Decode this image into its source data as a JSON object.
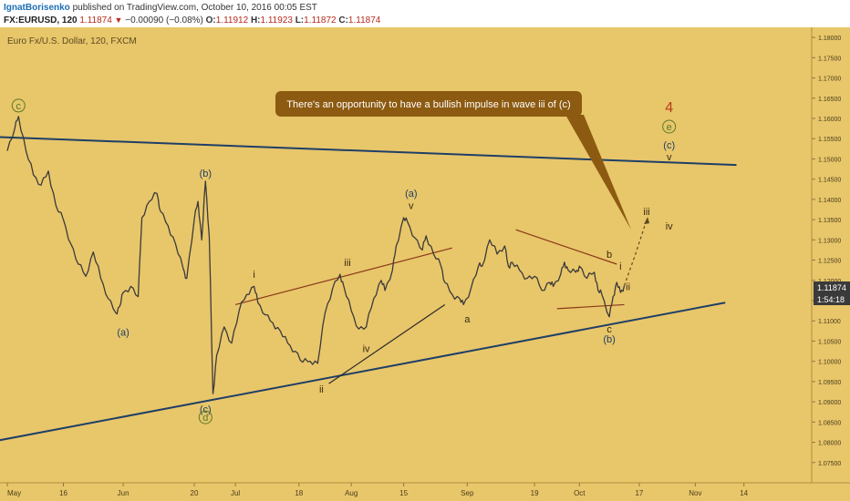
{
  "header": {
    "author": "IgnatBorisenko",
    "published": "published on TradingView.com, October 10, 2016 00:05 EST",
    "symbol": "FX:EURUSD, 120",
    "last": "1.11874",
    "change": "−0.00090 (−0.08%)",
    "o_label": "O:",
    "o": "1.11912",
    "h_label": "H:",
    "h": "1.11923",
    "l_label": "L:",
    "l": "1.11872",
    "c_label": "C:",
    "c": "1.11874"
  },
  "chart_title": "Euro Fx/U.S. Dollar, 120, FXCM",
  "callout": "There's an opportunity to have a bullish impulse in wave iii of (c)",
  "price_badges": {
    "last": "1.11874",
    "countdown": "1:54:18"
  },
  "colors": {
    "background": "#e8c66a",
    "candle": "#3a3a3a",
    "trendline": "#1f3f66",
    "minor_line": "#8a3a1a",
    "callout_bg": "#8c5a10",
    "red_label": "#b83a16",
    "green_label": "#5a7a2a"
  },
  "chart_data": {
    "type": "line",
    "ylim": [
      1.07,
      1.1825
    ],
    "y_ticks": [
      "1.18000",
      "1.17500",
      "1.17000",
      "1.16500",
      "1.16000",
      "1.15500",
      "1.15000",
      "1.14500",
      "1.14000",
      "1.13500",
      "1.13000",
      "1.12500",
      "1.12000",
      "1.11500",
      "1.11000",
      "1.10500",
      "1.10000",
      "1.09500",
      "1.09000",
      "1.08500",
      "1.08000",
      "1.07500"
    ],
    "x_ticks": [
      "May",
      "16",
      "Jun",
      "20",
      "Jul",
      "18",
      "Aug",
      "15",
      "Sep",
      "19",
      "Oct",
      "17",
      "Nov",
      "14"
    ],
    "x_tick_days": [
      0,
      15,
      31,
      50,
      61,
      78,
      92,
      106,
      123,
      141,
      153,
      169,
      184,
      197
    ],
    "price_path": [
      [
        0,
        1.152
      ],
      [
        2,
        1.1575
      ],
      [
        3,
        1.1605
      ],
      [
        5,
        1.152
      ],
      [
        7,
        1.146
      ],
      [
        9,
        1.1435
      ],
      [
        11,
        1.147
      ],
      [
        13,
        1.1385
      ],
      [
        15,
        1.135
      ],
      [
        17,
        1.129
      ],
      [
        19,
        1.124
      ],
      [
        21,
        1.121
      ],
      [
        23,
        1.127
      ],
      [
        25,
        1.1205
      ],
      [
        27,
        1.1155
      ],
      [
        29,
        1.112
      ],
      [
        30,
        1.1135
      ],
      [
        31,
        1.117
      ],
      [
        33,
        1.1185
      ],
      [
        35,
        1.116
      ],
      [
        36,
        1.1355
      ],
      [
        38,
        1.1395
      ],
      [
        40,
        1.1415
      ],
      [
        41,
        1.137
      ],
      [
        43,
        1.1335
      ],
      [
        45,
        1.129
      ],
      [
        47,
        1.123
      ],
      [
        48,
        1.1205
      ],
      [
        50,
        1.135
      ],
      [
        51,
        1.1395
      ],
      [
        52,
        1.13
      ],
      [
        53,
        1.1445
      ],
      [
        54,
        1.131
      ],
      [
        55,
        1.092
      ],
      [
        56,
        1.1015
      ],
      [
        58,
        1.1085
      ],
      [
        60,
        1.1045
      ],
      [
        62,
        1.1125
      ],
      [
        64,
        1.1165
      ],
      [
        66,
        1.1185
      ],
      [
        67,
        1.1145
      ],
      [
        69,
        1.1115
      ],
      [
        71,
        1.1095
      ],
      [
        73,
        1.1075
      ],
      [
        75,
        1.1045
      ],
      [
        77,
        1.1025
      ],
      [
        79,
        1.0998
      ],
      [
        81,
        1.1
      ],
      [
        83,
        1.0995
      ],
      [
        85,
        1.112
      ],
      [
        87,
        1.118
      ],
      [
        89,
        1.1215
      ],
      [
        90,
        1.1185
      ],
      [
        92,
        1.1125
      ],
      [
        94,
        1.108
      ],
      [
        96,
        1.1085
      ],
      [
        98,
        1.1155
      ],
      [
        100,
        1.12
      ],
      [
        101,
        1.1175
      ],
      [
        103,
        1.1225
      ],
      [
        104,
        1.1285
      ],
      [
        106,
        1.1355
      ],
      [
        107,
        1.1345
      ],
      [
        109,
        1.1305
      ],
      [
        111,
        1.1275
      ],
      [
        112,
        1.131
      ],
      [
        114,
        1.1265
      ],
      [
        116,
        1.1235
      ],
      [
        117,
        1.1195
      ],
      [
        119,
        1.1165
      ],
      [
        121,
        1.1155
      ],
      [
        122,
        1.114
      ],
      [
        124,
        1.118
      ],
      [
        126,
        1.1235
      ],
      [
        127,
        1.1235
      ],
      [
        129,
        1.13
      ],
      [
        131,
        1.1265
      ],
      [
        133,
        1.1285
      ],
      [
        134,
        1.1235
      ],
      [
        135,
        1.1245
      ],
      [
        137,
        1.1225
      ],
      [
        139,
        1.1205
      ],
      [
        141,
        1.121
      ],
      [
        143,
        1.1175
      ],
      [
        145,
        1.1195
      ],
      [
        146,
        1.1185
      ],
      [
        148,
        1.1215
      ],
      [
        149,
        1.1245
      ],
      [
        150,
        1.1225
      ],
      [
        152,
        1.122
      ],
      [
        153,
        1.1235
      ],
      [
        155,
        1.1205
      ],
      [
        157,
        1.122
      ],
      [
        158,
        1.1175
      ],
      [
        159,
        1.1165
      ],
      [
        161,
        1.111
      ],
      [
        162,
        1.116
      ],
      [
        163,
        1.1195
      ],
      [
        164,
        1.117
      ],
      [
        165,
        1.1187
      ]
    ],
    "projection": [
      [
        165,
        1.1187
      ],
      [
        168,
        1.1265
      ],
      [
        171,
        1.135
      ]
    ],
    "trendlines": {
      "major_upper": [
        [
          -5,
          1.1555
        ],
        [
          195,
          1.1485
        ]
      ],
      "major_lower": [
        [
          -5,
          1.08
        ],
        [
          192,
          1.1145
        ]
      ],
      "minor_wedge_upper": [
        [
          61,
          1.114
        ],
        [
          119,
          1.128
        ]
      ],
      "minor_wedge_lower": [
        [
          86,
          1.0945
        ],
        [
          117,
          1.114
        ]
      ],
      "triangle_upper": [
        [
          136,
          1.1325
        ],
        [
          163,
          1.124
        ]
      ],
      "triangle_lower": [
        [
          147,
          1.113
        ],
        [
          165,
          1.114
        ]
      ]
    },
    "wave_labels": [
      {
        "text": "c",
        "x": 3,
        "y": 1.1625,
        "style": "circled"
      },
      {
        "text": "(b)",
        "x": 53,
        "y": 1.1465
      },
      {
        "text": "(a)",
        "x": 31,
        "y": 1.1072
      },
      {
        "text": "(c)",
        "x": 53,
        "y": 1.0882
      },
      {
        "text": "d",
        "x": 53,
        "y": 1.0855,
        "style": "circled"
      },
      {
        "text": "i",
        "x": 66,
        "y": 1.1215
      },
      {
        "text": "ii",
        "x": 84,
        "y": 1.0932
      },
      {
        "text": "iii",
        "x": 91,
        "y": 1.1245
      },
      {
        "text": "iv",
        "x": 96,
        "y": 1.1032
      },
      {
        "text": "(a)",
        "x": 108,
        "y": 1.1415
      },
      {
        "text": "v",
        "x": 108,
        "y": 1.1385
      },
      {
        "text": "a",
        "x": 123,
        "y": 1.1105
      },
      {
        "text": "b",
        "x": 161,
        "y": 1.1265
      },
      {
        "text": "i",
        "x": 164,
        "y": 1.1235
      },
      {
        "text": "ii",
        "x": 166,
        "y": 1.1185
      },
      {
        "text": "c",
        "x": 161,
        "y": 1.108
      },
      {
        "text": "(b)",
        "x": 161,
        "y": 1.1055
      },
      {
        "text": "iii",
        "x": 171,
        "y": 1.137
      },
      {
        "text": "iv",
        "x": 177,
        "y": 1.1335
      },
      {
        "text": "4",
        "x": 177,
        "y": 1.1625,
        "style": "red"
      },
      {
        "text": "e",
        "x": 177,
        "y": 1.1573,
        "style": "circled"
      },
      {
        "text": "(c)",
        "x": 177,
        "y": 1.1535
      },
      {
        "text": "v",
        "x": 177,
        "y": 1.1505
      }
    ]
  }
}
